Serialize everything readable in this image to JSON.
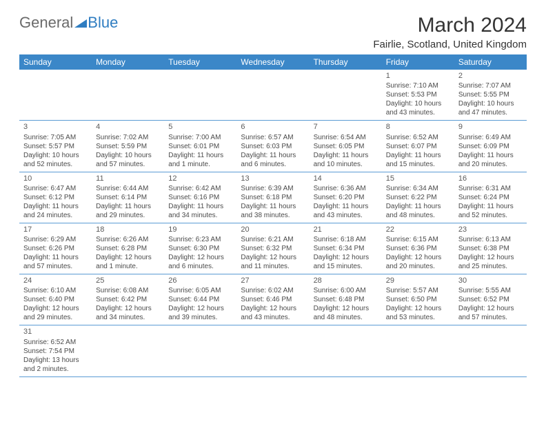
{
  "logo": {
    "part1": "General",
    "part2": "Blue"
  },
  "title": "March 2024",
  "location": "Fairlie, Scotland, United Kingdom",
  "colors": {
    "header_bar": "#3b87c8",
    "row_divider": "#5a9bd4",
    "text": "#4a4a4a",
    "title_text": "#333333",
    "logo_general": "#6a6a6a",
    "logo_blue": "#2f7dc1",
    "logo_triangle": "#2f7dc1"
  },
  "weekdays": [
    "Sunday",
    "Monday",
    "Tuesday",
    "Wednesday",
    "Thursday",
    "Friday",
    "Saturday"
  ],
  "weeks": [
    [
      {
        "empty": true
      },
      {
        "empty": true
      },
      {
        "empty": true
      },
      {
        "empty": true
      },
      {
        "empty": true
      },
      {
        "num": "1",
        "sunrise": "Sunrise: 7:10 AM",
        "sunset": "Sunset: 5:53 PM",
        "daylight": "Daylight: 10 hours and 43 minutes."
      },
      {
        "num": "2",
        "sunrise": "Sunrise: 7:07 AM",
        "sunset": "Sunset: 5:55 PM",
        "daylight": "Daylight: 10 hours and 47 minutes."
      }
    ],
    [
      {
        "num": "3",
        "sunrise": "Sunrise: 7:05 AM",
        "sunset": "Sunset: 5:57 PM",
        "daylight": "Daylight: 10 hours and 52 minutes."
      },
      {
        "num": "4",
        "sunrise": "Sunrise: 7:02 AM",
        "sunset": "Sunset: 5:59 PM",
        "daylight": "Daylight: 10 hours and 57 minutes."
      },
      {
        "num": "5",
        "sunrise": "Sunrise: 7:00 AM",
        "sunset": "Sunset: 6:01 PM",
        "daylight": "Daylight: 11 hours and 1 minute."
      },
      {
        "num": "6",
        "sunrise": "Sunrise: 6:57 AM",
        "sunset": "Sunset: 6:03 PM",
        "daylight": "Daylight: 11 hours and 6 minutes."
      },
      {
        "num": "7",
        "sunrise": "Sunrise: 6:54 AM",
        "sunset": "Sunset: 6:05 PM",
        "daylight": "Daylight: 11 hours and 10 minutes."
      },
      {
        "num": "8",
        "sunrise": "Sunrise: 6:52 AM",
        "sunset": "Sunset: 6:07 PM",
        "daylight": "Daylight: 11 hours and 15 minutes."
      },
      {
        "num": "9",
        "sunrise": "Sunrise: 6:49 AM",
        "sunset": "Sunset: 6:09 PM",
        "daylight": "Daylight: 11 hours and 20 minutes."
      }
    ],
    [
      {
        "num": "10",
        "sunrise": "Sunrise: 6:47 AM",
        "sunset": "Sunset: 6:12 PM",
        "daylight": "Daylight: 11 hours and 24 minutes."
      },
      {
        "num": "11",
        "sunrise": "Sunrise: 6:44 AM",
        "sunset": "Sunset: 6:14 PM",
        "daylight": "Daylight: 11 hours and 29 minutes."
      },
      {
        "num": "12",
        "sunrise": "Sunrise: 6:42 AM",
        "sunset": "Sunset: 6:16 PM",
        "daylight": "Daylight: 11 hours and 34 minutes."
      },
      {
        "num": "13",
        "sunrise": "Sunrise: 6:39 AM",
        "sunset": "Sunset: 6:18 PM",
        "daylight": "Daylight: 11 hours and 38 minutes."
      },
      {
        "num": "14",
        "sunrise": "Sunrise: 6:36 AM",
        "sunset": "Sunset: 6:20 PM",
        "daylight": "Daylight: 11 hours and 43 minutes."
      },
      {
        "num": "15",
        "sunrise": "Sunrise: 6:34 AM",
        "sunset": "Sunset: 6:22 PM",
        "daylight": "Daylight: 11 hours and 48 minutes."
      },
      {
        "num": "16",
        "sunrise": "Sunrise: 6:31 AM",
        "sunset": "Sunset: 6:24 PM",
        "daylight": "Daylight: 11 hours and 52 minutes."
      }
    ],
    [
      {
        "num": "17",
        "sunrise": "Sunrise: 6:29 AM",
        "sunset": "Sunset: 6:26 PM",
        "daylight": "Daylight: 11 hours and 57 minutes."
      },
      {
        "num": "18",
        "sunrise": "Sunrise: 6:26 AM",
        "sunset": "Sunset: 6:28 PM",
        "daylight": "Daylight: 12 hours and 1 minute."
      },
      {
        "num": "19",
        "sunrise": "Sunrise: 6:23 AM",
        "sunset": "Sunset: 6:30 PM",
        "daylight": "Daylight: 12 hours and 6 minutes."
      },
      {
        "num": "20",
        "sunrise": "Sunrise: 6:21 AM",
        "sunset": "Sunset: 6:32 PM",
        "daylight": "Daylight: 12 hours and 11 minutes."
      },
      {
        "num": "21",
        "sunrise": "Sunrise: 6:18 AM",
        "sunset": "Sunset: 6:34 PM",
        "daylight": "Daylight: 12 hours and 15 minutes."
      },
      {
        "num": "22",
        "sunrise": "Sunrise: 6:15 AM",
        "sunset": "Sunset: 6:36 PM",
        "daylight": "Daylight: 12 hours and 20 minutes."
      },
      {
        "num": "23",
        "sunrise": "Sunrise: 6:13 AM",
        "sunset": "Sunset: 6:38 PM",
        "daylight": "Daylight: 12 hours and 25 minutes."
      }
    ],
    [
      {
        "num": "24",
        "sunrise": "Sunrise: 6:10 AM",
        "sunset": "Sunset: 6:40 PM",
        "daylight": "Daylight: 12 hours and 29 minutes."
      },
      {
        "num": "25",
        "sunrise": "Sunrise: 6:08 AM",
        "sunset": "Sunset: 6:42 PM",
        "daylight": "Daylight: 12 hours and 34 minutes."
      },
      {
        "num": "26",
        "sunrise": "Sunrise: 6:05 AM",
        "sunset": "Sunset: 6:44 PM",
        "daylight": "Daylight: 12 hours and 39 minutes."
      },
      {
        "num": "27",
        "sunrise": "Sunrise: 6:02 AM",
        "sunset": "Sunset: 6:46 PM",
        "daylight": "Daylight: 12 hours and 43 minutes."
      },
      {
        "num": "28",
        "sunrise": "Sunrise: 6:00 AM",
        "sunset": "Sunset: 6:48 PM",
        "daylight": "Daylight: 12 hours and 48 minutes."
      },
      {
        "num": "29",
        "sunrise": "Sunrise: 5:57 AM",
        "sunset": "Sunset: 6:50 PM",
        "daylight": "Daylight: 12 hours and 53 minutes."
      },
      {
        "num": "30",
        "sunrise": "Sunrise: 5:55 AM",
        "sunset": "Sunset: 6:52 PM",
        "daylight": "Daylight: 12 hours and 57 minutes."
      }
    ],
    [
      {
        "num": "31",
        "sunrise": "Sunrise: 6:52 AM",
        "sunset": "Sunset: 7:54 PM",
        "daylight": "Daylight: 13 hours and 2 minutes."
      },
      {
        "empty": true
      },
      {
        "empty": true
      },
      {
        "empty": true
      },
      {
        "empty": true
      },
      {
        "empty": true
      },
      {
        "empty": true
      }
    ]
  ]
}
